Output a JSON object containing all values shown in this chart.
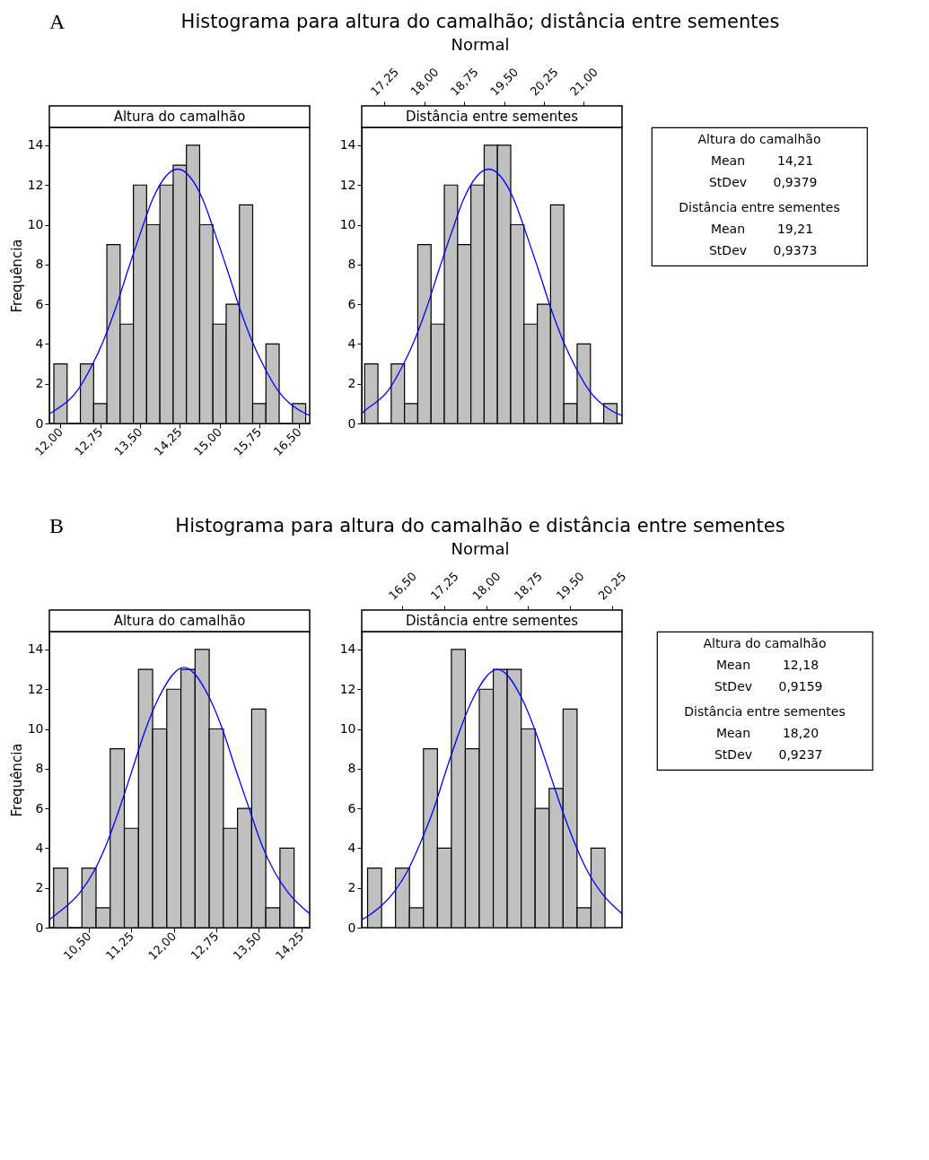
{
  "chart_data": [
    {
      "type": "other",
      "title": "Histograma para altura do camalhão; distância entre sementes",
      "subtitle": "Normal",
      "annotations": [
        "A"
      ]
    },
    {
      "type": "histogram",
      "title": "Altura do camalhão",
      "ylabel": "Frequência",
      "xlim": [
        11.79,
        16.7
      ],
      "xticks": [
        {
          "value": 12,
          "label": "12,00"
        },
        {
          "value": 12.75,
          "label": "12,75"
        },
        {
          "value": 13.5,
          "label": "13,50"
        },
        {
          "value": 14.25,
          "label": "14,25"
        },
        {
          "value": 15,
          "label": "15,00"
        },
        {
          "value": 15.75,
          "label": "15,75"
        },
        {
          "value": 16.5,
          "label": "16,50"
        }
      ],
      "ylim": [
        0,
        14.9
      ],
      "yticks": [
        0,
        2,
        4,
        6,
        8,
        10,
        12,
        14
      ],
      "series": [
        {
          "type": "histogram",
          "color": "#c0c0c0",
          "bins": [
            11.875,
            12.125,
            12.375,
            12.625,
            12.875,
            13.125,
            13.375,
            13.625,
            13.875,
            14.125,
            14.375,
            14.625,
            14.875,
            15.125,
            15.375,
            15.625,
            15.875,
            16.125,
            16.375,
            16.625
          ],
          "values": [
            3,
            0,
            3,
            1,
            9,
            5,
            12,
            10,
            12,
            13,
            14,
            10,
            5,
            6,
            11,
            1,
            4,
            0,
            1
          ]
        },
        {
          "type": "line",
          "color": "#0000ff",
          "x": [
            11.8,
            11.86,
            12.33,
            12.57,
            12.8,
            13.04,
            13.27,
            13.51,
            13.74,
            14.21,
            14.68,
            14.91,
            15.15,
            15.38,
            15.62,
            15.85,
            16.09,
            16.55,
            16.7
          ],
          "values": [
            0.5,
            0.6,
            1.7,
            2.8,
            4.1,
            5.8,
            7.7,
            9.6,
            11.3,
            12.8,
            11.3,
            9.6,
            7.7,
            5.8,
            4.1,
            2.8,
            1.7,
            0.6,
            0.4
          ]
        }
      ]
    },
    {
      "type": "histogram",
      "title": "Distância entre sementes",
      "xlim": [
        16.82,
        21.72
      ],
      "xticks": [
        {
          "value": 17.25,
          "label": "17,25"
        },
        {
          "value": 18,
          "label": "18,00"
        },
        {
          "value": 18.75,
          "label": "18,75"
        },
        {
          "value": 19.5,
          "label": "19,50"
        },
        {
          "value": 20.25,
          "label": "20,25"
        },
        {
          "value": 21,
          "label": "21,00"
        }
      ],
      "ylim": [
        0,
        14.9
      ],
      "yticks": [
        0,
        2,
        4,
        6,
        8,
        10,
        12,
        14
      ],
      "series": [
        {
          "type": "histogram",
          "color": "#c0c0c0",
          "bins": [
            16.875,
            17.125,
            17.375,
            17.625,
            17.875,
            18.125,
            18.375,
            18.625,
            18.875,
            19.125,
            19.375,
            19.625,
            19.875,
            20.125,
            20.375,
            20.625,
            20.875,
            21.125,
            21.375,
            21.625
          ],
          "values": [
            3,
            0,
            3,
            1,
            9,
            5,
            12,
            9,
            12,
            14,
            14,
            10,
            5,
            6,
            11,
            1,
            4,
            0,
            1
          ]
        },
        {
          "type": "line",
          "color": "#0000ff",
          "x": [
            16.82,
            16.86,
            17.33,
            17.57,
            17.8,
            18.04,
            18.27,
            18.51,
            18.74,
            19.21,
            19.68,
            19.91,
            20.15,
            20.38,
            20.62,
            20.85,
            21.09,
            21.55,
            21.72
          ],
          "values": [
            0.5,
            0.6,
            1.7,
            2.8,
            4.1,
            5.8,
            7.7,
            9.6,
            11.3,
            12.8,
            11.3,
            9.6,
            7.7,
            5.8,
            4.1,
            2.8,
            1.7,
            0.6,
            0.4
          ]
        }
      ]
    },
    {
      "type": "other",
      "annotations": [
        "Altura do camalhão",
        "Mean",
        "14,21",
        "StDev",
        "0,9379",
        "Distância entre sementes",
        "Mean",
        "19,21",
        "StDev",
        "0,9373"
      ]
    },
    {
      "type": "other",
      "title": "Histograma  para altura do camalhão e distância entre sementes",
      "subtitle": "Normal",
      "annotations": [
        "B"
      ]
    },
    {
      "type": "histogram",
      "title": "Altura do camalhão",
      "ylabel": "Frequência",
      "xlim": [
        9.8,
        14.4
      ],
      "xticks": [
        {
          "value": 10.5,
          "label": "10,50"
        },
        {
          "value": 11.25,
          "label": "11,25"
        },
        {
          "value": 12,
          "label": "12,00"
        },
        {
          "value": 12.75,
          "label": "12,75"
        },
        {
          "value": 13.5,
          "label": "13,50"
        },
        {
          "value": 14.25,
          "label": "14,25"
        }
      ],
      "ylim": [
        0,
        14.9
      ],
      "yticks": [
        0,
        2,
        4,
        6,
        8,
        10,
        12,
        14
      ],
      "series": [
        {
          "type": "histogram",
          "color": "#c0c0c0",
          "bins": [
            9.875,
            10.125,
            10.375,
            10.625,
            10.875,
            11.125,
            11.375,
            11.625,
            11.875,
            12.125,
            12.375,
            12.625,
            12.875,
            13.125,
            13.375,
            13.625,
            13.875,
            14.125
          ],
          "values": [
            3,
            0,
            3,
            1,
            9,
            5,
            13,
            10,
            12,
            13,
            14,
            10,
            5,
            6,
            11,
            1,
            4
          ]
        },
        {
          "type": "line",
          "color": "#0000ff",
          "x": [
            9.8,
            9.89,
            10.35,
            10.58,
            10.81,
            11.04,
            11.26,
            11.49,
            11.72,
            12.18,
            12.64,
            12.87,
            13.1,
            13.33,
            13.55,
            13.78,
            14.01,
            14.4
          ],
          "values": [
            0.4,
            0.6,
            1.8,
            2.8,
            4.2,
            6.0,
            7.9,
            9.9,
            11.5,
            13.1,
            11.5,
            9.9,
            7.9,
            6.0,
            4.2,
            2.8,
            1.8,
            0.7
          ]
        }
      ]
    },
    {
      "type": "histogram",
      "title": "Distância entre sementes",
      "xlim": [
        15.77,
        20.43
      ],
      "xticks": [
        {
          "value": 16.5,
          "label": "16,50"
        },
        {
          "value": 17.25,
          "label": "17,25"
        },
        {
          "value": 18,
          "label": "18,00"
        },
        {
          "value": 18.75,
          "label": "18,75"
        },
        {
          "value": 19.5,
          "label": "19,50"
        },
        {
          "value": 20.25,
          "label": "20,25"
        }
      ],
      "ylim": [
        0,
        14.9
      ],
      "yticks": [
        0,
        2,
        4,
        6,
        8,
        10,
        12,
        14
      ],
      "series": [
        {
          "type": "histogram",
          "color": "#c0c0c0",
          "bins": [
            15.875,
            16.125,
            16.375,
            16.625,
            16.875,
            17.125,
            17.375,
            17.625,
            17.875,
            18.125,
            18.375,
            18.625,
            18.875,
            19.125,
            19.375,
            19.625,
            19.875,
            20.125
          ],
          "values": [
            3,
            0,
            3,
            1,
            9,
            4,
            14,
            9,
            12,
            13,
            13,
            10,
            6,
            7,
            11,
            1,
            4
          ]
        },
        {
          "type": "line",
          "color": "#0000ff",
          "x": [
            15.77,
            15.89,
            16.35,
            16.58,
            16.81,
            17.05,
            17.28,
            17.51,
            17.74,
            18.2,
            18.66,
            18.89,
            19.12,
            19.36,
            19.59,
            19.82,
            20.05,
            20.43
          ],
          "values": [
            0.4,
            0.6,
            1.8,
            2.8,
            4.2,
            5.9,
            7.9,
            9.8,
            11.4,
            13.0,
            11.4,
            9.8,
            7.9,
            5.9,
            4.2,
            2.8,
            1.8,
            0.7
          ]
        }
      ]
    },
    {
      "type": "other",
      "annotations": [
        "Altura do camalhão",
        "Mean",
        "12,18",
        "StDev",
        "0,9159",
        "Distância entre sementes",
        "Mean",
        "18,20",
        "StDev",
        "0,9237"
      ]
    }
  ]
}
